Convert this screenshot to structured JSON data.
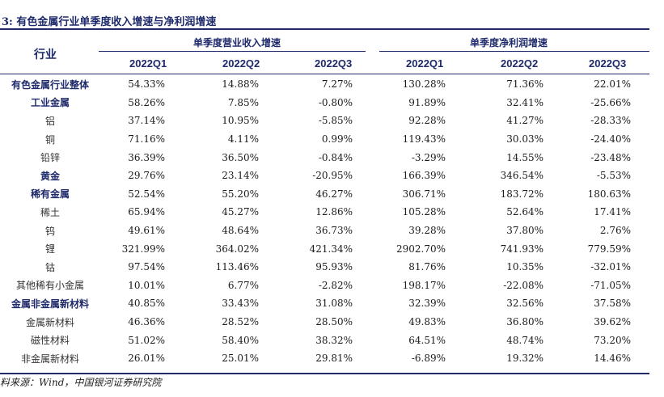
{
  "title": "3: 有色金属行业单季度收入增速与净利润增速",
  "header": {
    "industry": "行业",
    "group_revenue": "单季度营业收入增速",
    "group_profit": "单季度净利润增速",
    "quarters": [
      "2022Q1",
      "2022Q2",
      "2022Q3",
      "2022Q1",
      "2022Q2",
      "2022Q3"
    ]
  },
  "rows": [
    {
      "name": "有色金属行业整体",
      "level": "bold",
      "values": [
        "54.33%",
        "14.88%",
        "7.27%",
        "130.28%",
        "71.36%",
        "22.01%"
      ]
    },
    {
      "name": "工业金属",
      "level": "bold",
      "values": [
        "58.26%",
        "7.85%",
        "-0.80%",
        "91.89%",
        "32.41%",
        "-25.66%"
      ]
    },
    {
      "name": "铝",
      "level": "sub",
      "values": [
        "37.14%",
        "10.95%",
        "-5.85%",
        "92.28%",
        "41.27%",
        "-28.33%"
      ]
    },
    {
      "name": "铜",
      "level": "sub",
      "values": [
        "71.16%",
        "4.11%",
        "0.99%",
        "119.43%",
        "30.03%",
        "-24.40%"
      ]
    },
    {
      "name": "铅锌",
      "level": "sub",
      "values": [
        "36.39%",
        "36.50%",
        "-0.84%",
        "-3.29%",
        "14.55%",
        "-23.48%"
      ]
    },
    {
      "name": "黄金",
      "level": "bold",
      "values": [
        "29.76%",
        "23.14%",
        "-20.95%",
        "166.39%",
        "346.54%",
        "-5.53%"
      ]
    },
    {
      "name": "稀有金属",
      "level": "bold",
      "values": [
        "52.54%",
        "55.20%",
        "46.27%",
        "306.71%",
        "183.72%",
        "180.63%"
      ]
    },
    {
      "name": "稀土",
      "level": "sub",
      "values": [
        "65.94%",
        "45.27%",
        "12.86%",
        "105.28%",
        "52.64%",
        "17.41%"
      ]
    },
    {
      "name": "钨",
      "level": "sub",
      "values": [
        "49.61%",
        "48.64%",
        "36.73%",
        "39.28%",
        "37.80%",
        "2.76%"
      ]
    },
    {
      "name": "锂",
      "level": "sub",
      "values": [
        "321.99%",
        "364.02%",
        "421.34%",
        "2902.70%",
        "741.93%",
        "779.59%"
      ]
    },
    {
      "name": "钴",
      "level": "sub",
      "values": [
        "97.54%",
        "113.46%",
        "95.93%",
        "81.76%",
        "10.35%",
        "-32.01%"
      ]
    },
    {
      "name": "其他稀有小金属",
      "level": "sub",
      "values": [
        "10.01%",
        "6.77%",
        "-2.82%",
        "198.17%",
        "-22.08%",
        "-71.05%"
      ]
    },
    {
      "name": "金属非金属新材料",
      "level": "bold",
      "values": [
        "40.85%",
        "33.43%",
        "31.08%",
        "32.39%",
        "32.56%",
        "37.58%"
      ]
    },
    {
      "name": "金属新材料",
      "level": "sub",
      "values": [
        "46.36%",
        "28.52%",
        "28.50%",
        "49.83%",
        "36.80%",
        "39.62%"
      ]
    },
    {
      "name": "磁性材料",
      "level": "sub",
      "values": [
        "51.02%",
        "58.40%",
        "38.32%",
        "64.51%",
        "48.74%",
        "73.20%"
      ]
    },
    {
      "name": "非金属新材料",
      "level": "sub",
      "values": [
        "26.01%",
        "25.01%",
        "29.81%",
        "-6.89%",
        "19.32%",
        "14.46%"
      ]
    }
  ],
  "source": "料来源：Wind，中国银河证券研究院"
}
